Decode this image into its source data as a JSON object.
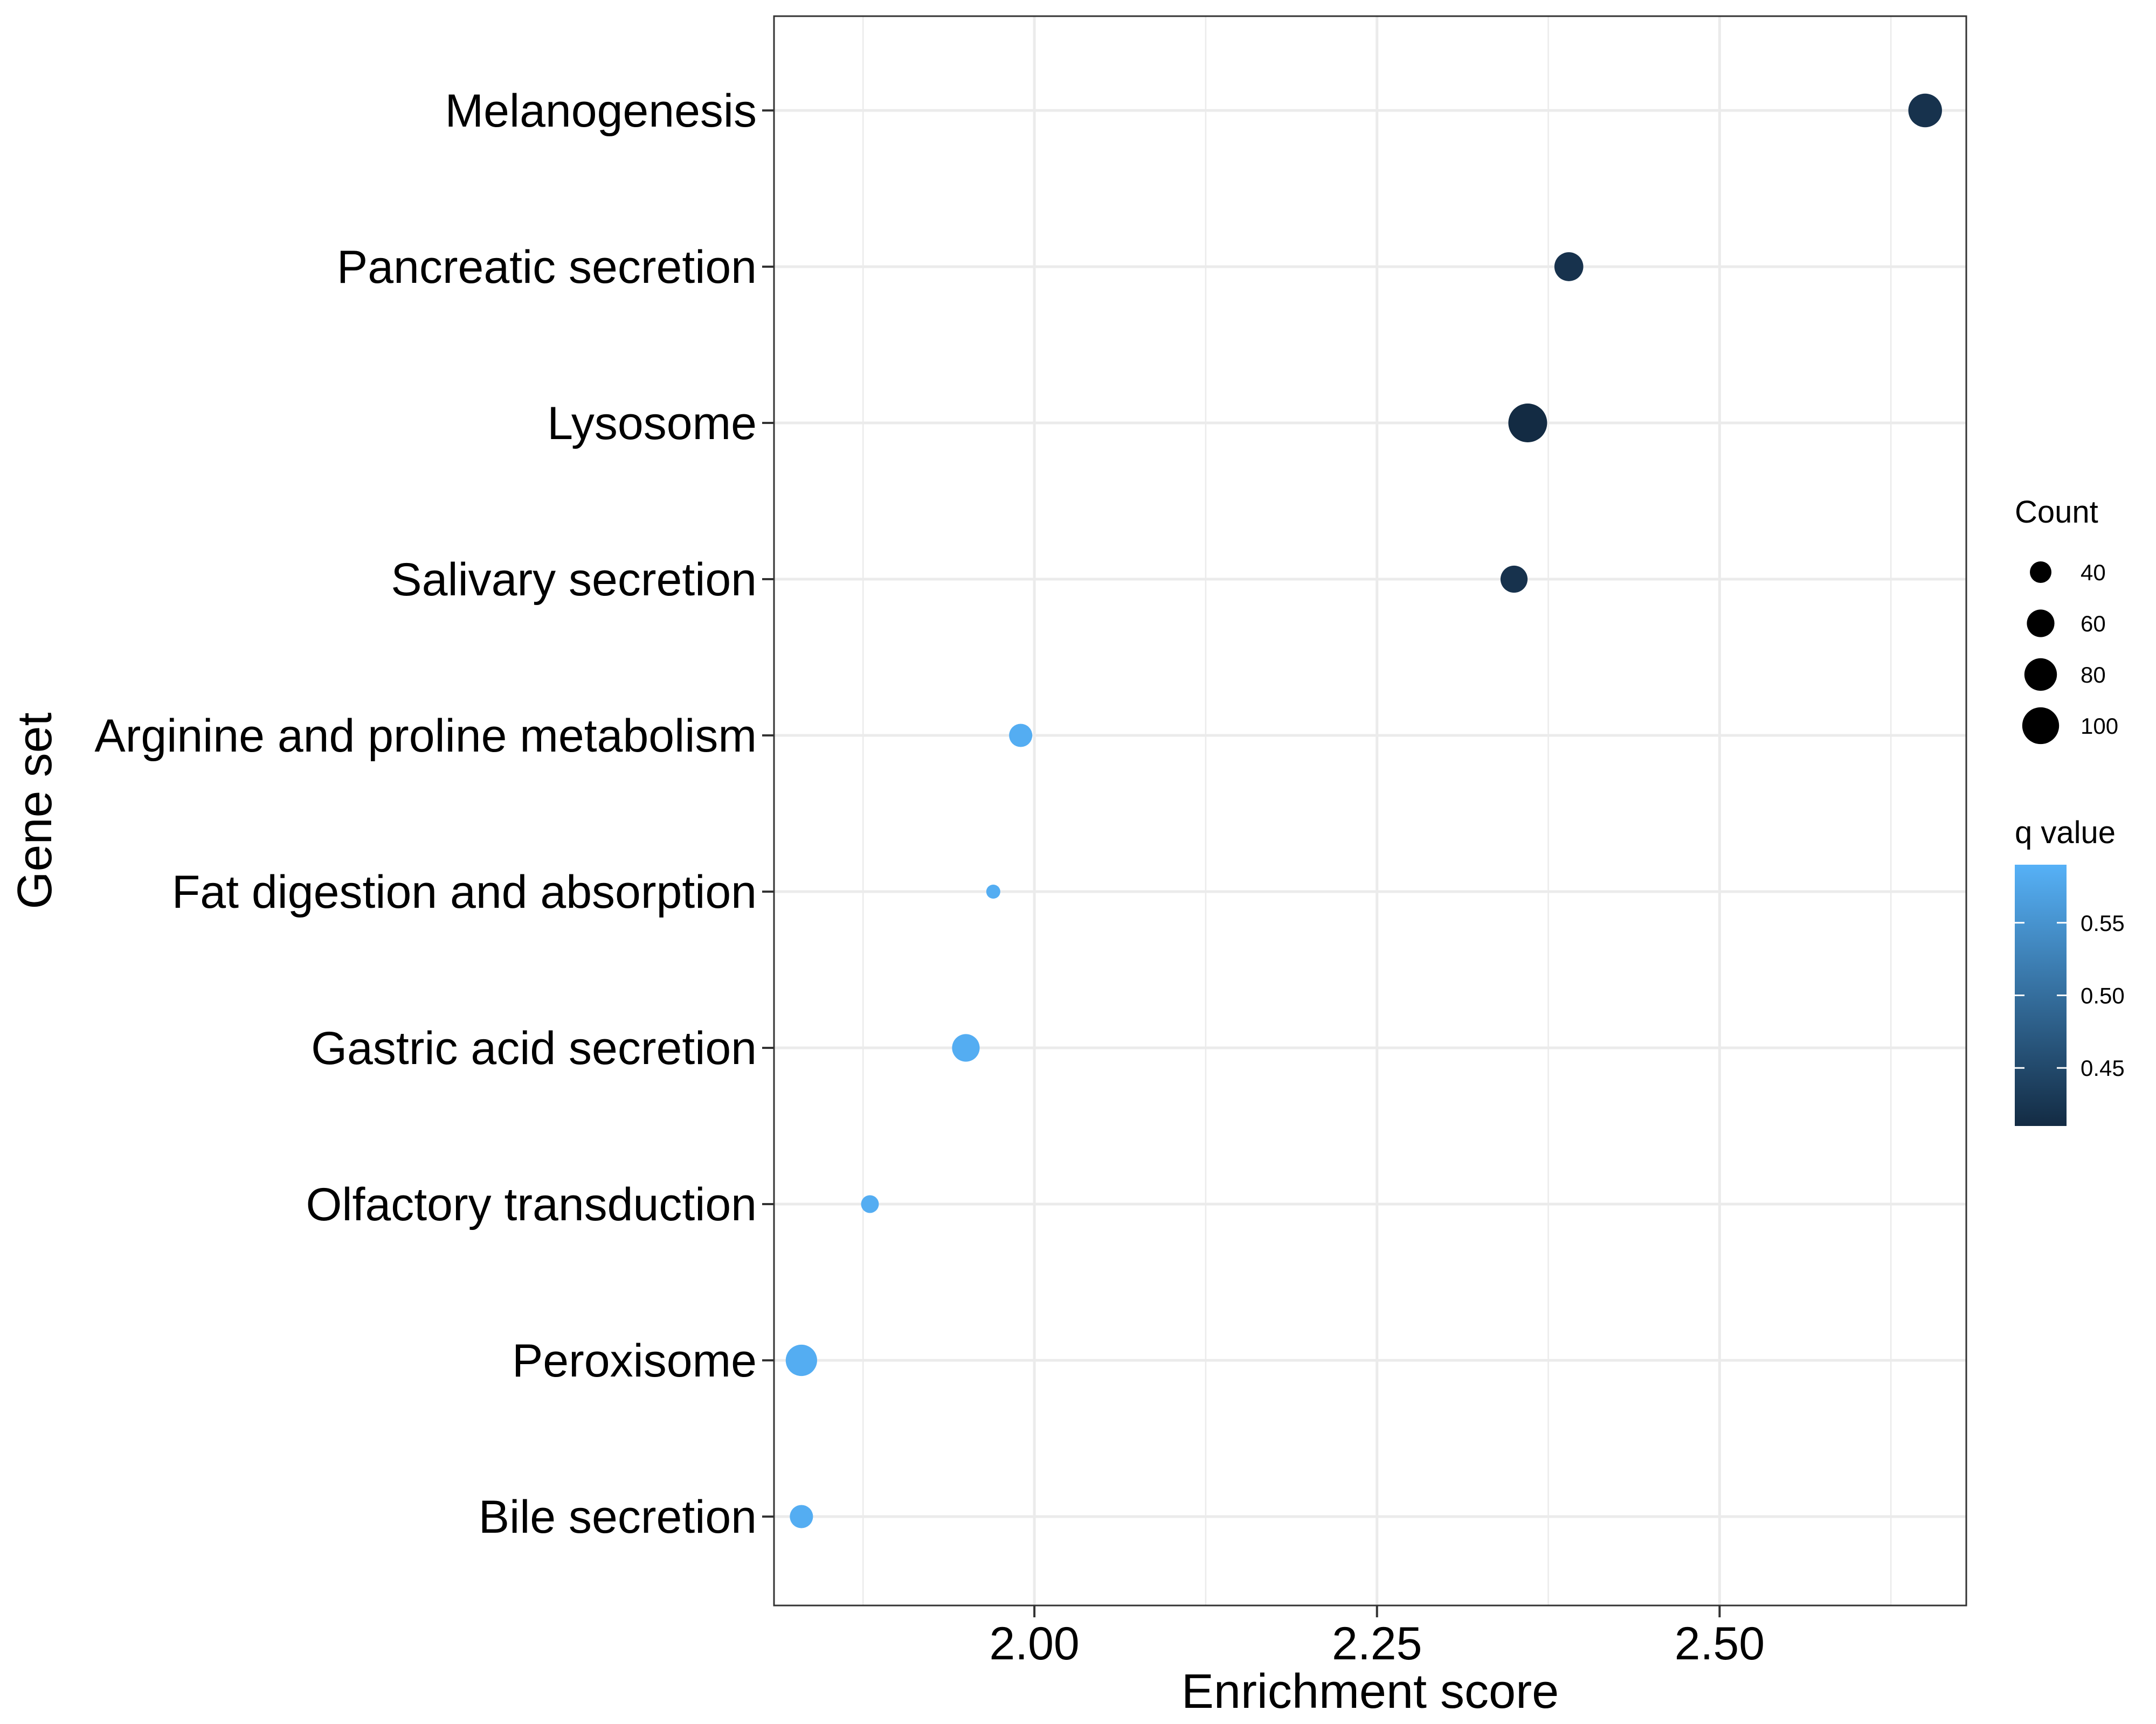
{
  "chart_data": {
    "type": "scatter",
    "xlabel": "Enrichment score",
    "ylabel": "Gene set",
    "xlim": [
      1.81,
      2.68
    ],
    "x_ticks": [
      "2.00",
      "2.25",
      "2.50"
    ],
    "x_tick_values": [
      2.0,
      2.25,
      2.5
    ],
    "grid": true,
    "categories": [
      "Melanogenesis",
      "Pancreatic secretion",
      "Lysosome",
      "Salivary secretion",
      "Arginine and proline metabolism",
      "Fat digestion and absorption",
      "Gastric acid secretion",
      "Olfactory transduction",
      "Peroxisome",
      "Bile secretion"
    ],
    "points": [
      {
        "gene_set": "Melanogenesis",
        "enrichment_score": 2.65,
        "count": 85,
        "q_value": 0.42
      },
      {
        "gene_set": "Pancreatic secretion",
        "enrichment_score": 2.39,
        "count": 65,
        "q_value": 0.42
      },
      {
        "gene_set": "Lysosome",
        "enrichment_score": 2.36,
        "count": 110,
        "q_value": 0.41
      },
      {
        "gene_set": "Salivary secretion",
        "enrichment_score": 2.35,
        "count": 58,
        "q_value": 0.42
      },
      {
        "gene_set": "Arginine and proline metabolism",
        "enrichment_score": 1.99,
        "count": 45,
        "q_value": 0.585
      },
      {
        "gene_set": "Fat digestion and absorption",
        "enrichment_score": 1.97,
        "count": 22,
        "q_value": 0.585
      },
      {
        "gene_set": "Gastric acid secretion",
        "enrichment_score": 1.95,
        "count": 60,
        "q_value": 0.585
      },
      {
        "gene_set": "Olfactory transduction",
        "enrichment_score": 1.88,
        "count": 30,
        "q_value": 0.585
      },
      {
        "gene_set": "Peroxisome",
        "enrichment_score": 1.83,
        "count": 75,
        "q_value": 0.585
      },
      {
        "gene_set": "Bile secretion",
        "enrichment_score": 1.83,
        "count": 45,
        "q_value": 0.585
      }
    ],
    "size_legend": {
      "title": "Count",
      "values": [
        40,
        60,
        80,
        100
      ],
      "labels": [
        "40",
        "60",
        "80",
        "100"
      ]
    },
    "color_legend": {
      "title": "q value",
      "range": [
        0.41,
        0.59
      ],
      "ticks": [
        0.45,
        0.5,
        0.55
      ],
      "tick_labels": [
        "0.45",
        "0.50",
        "0.55"
      ],
      "low_color": "#132b43",
      "high_color": "#56b1f7"
    },
    "legend_position": "right"
  }
}
